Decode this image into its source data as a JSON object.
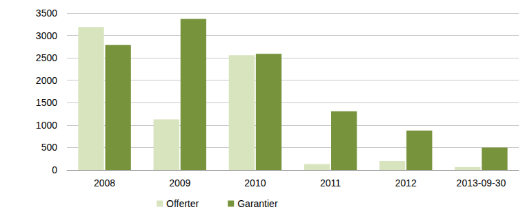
{
  "chart_data": {
    "type": "bar",
    "categories": [
      "2008",
      "2009",
      "2010",
      "2011",
      "2012",
      "2013-09-30"
    ],
    "series": [
      {
        "name": "Offerter",
        "color": "#d7e4bd",
        "values": [
          3190,
          1130,
          2560,
          130,
          200,
          60
        ]
      },
      {
        "name": "Garantier",
        "color": "#77933c",
        "values": [
          2790,
          3370,
          2590,
          1310,
          880,
          500
        ]
      }
    ],
    "ylim": [
      0,
      3500
    ],
    "yticks": [
      0,
      500,
      1000,
      1500,
      2000,
      2500,
      3000,
      3500
    ],
    "grid": true,
    "legend": "bottom"
  }
}
